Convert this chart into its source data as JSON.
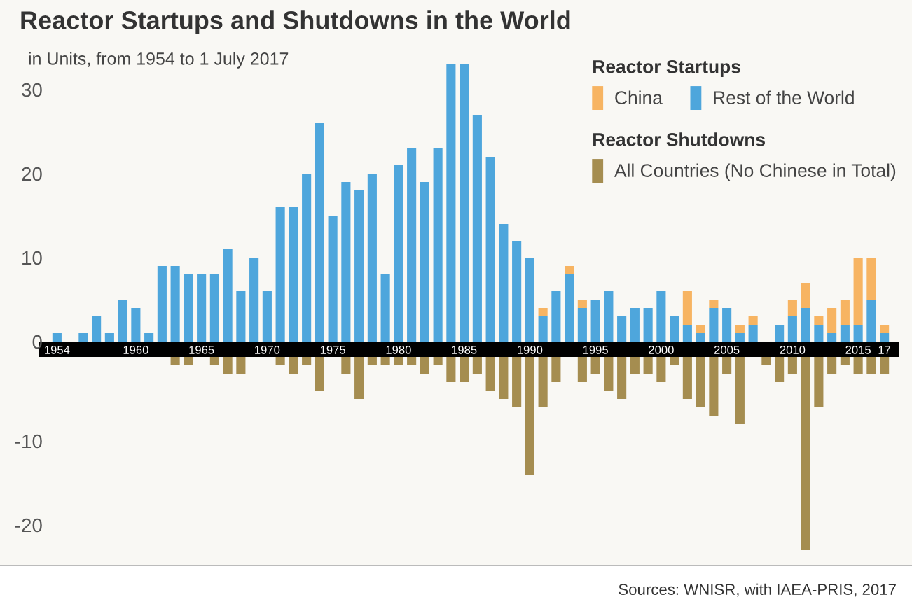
{
  "chart_data": [
    {
      "type": "bar",
      "title": "Reactor Startups and Shutdowns in the World",
      "subtitle": "in Units, from 1954 to 1 July 2017",
      "categories": [
        "1954",
        null,
        null,
        null,
        null,
        null,
        "1960",
        null,
        null,
        null,
        null,
        "1965",
        null,
        null,
        null,
        null,
        "1970",
        null,
        null,
        null,
        null,
        "1975",
        null,
        null,
        null,
        null,
        "1980",
        null,
        null,
        null,
        null,
        "1985",
        null,
        null,
        null,
        null,
        "1990",
        null,
        null,
        null,
        null,
        "1995",
        null,
        null,
        null,
        null,
        "2000",
        null,
        null,
        null,
        null,
        "2005",
        null,
        null,
        null,
        null,
        "2010",
        null,
        null,
        null,
        null,
        "2015",
        null,
        "17"
      ],
      "stacked": true,
      "series": [
        {
          "name": "Rest of the World",
          "color": "#4ea6dc",
          "values": [
            1,
            0,
            1,
            3,
            1,
            5,
            4,
            1,
            9,
            9,
            8,
            8,
            8,
            11,
            6,
            10,
            6,
            16,
            16,
            20,
            26,
            15,
            19,
            18,
            20,
            8,
            21,
            23,
            19,
            23,
            33,
            33,
            27,
            22,
            14,
            12,
            10,
            3,
            6,
            8,
            4,
            5,
            6,
            3,
            4,
            4,
            6,
            3,
            2,
            1,
            4,
            4,
            1,
            2,
            0,
            2,
            3,
            4,
            2,
            1,
            2,
            2,
            5,
            1
          ]
        },
        {
          "name": "China",
          "color": "#f7b462",
          "values": [
            0,
            0,
            0,
            0,
            0,
            0,
            0,
            0,
            0,
            0,
            0,
            0,
            0,
            0,
            0,
            0,
            0,
            0,
            0,
            0,
            0,
            0,
            0,
            0,
            0,
            0,
            0,
            0,
            0,
            0,
            0,
            0,
            0,
            0,
            0,
            0,
            0,
            1,
            0,
            1,
            1,
            0,
            0,
            0,
            0,
            0,
            0,
            0,
            4,
            1,
            1,
            0,
            1,
            1,
            0,
            0,
            2,
            3,
            1,
            3,
            3,
            8,
            5,
            1
          ]
        }
      ],
      "legend_title": "Reactor Startups",
      "legend": "top right",
      "ylim": [
        0,
        33.5
      ],
      "yticks": [
        0,
        10,
        20,
        30
      ]
    },
    {
      "type": "bar",
      "categories": [
        "1954",
        null,
        null,
        null,
        null,
        null,
        "1960",
        null,
        null,
        null,
        null,
        "1965",
        null,
        null,
        null,
        null,
        "1970",
        null,
        null,
        null,
        null,
        "1975",
        null,
        null,
        null,
        null,
        "1980",
        null,
        null,
        null,
        null,
        "1985",
        null,
        null,
        null,
        null,
        "1990",
        null,
        null,
        null,
        null,
        "1995",
        null,
        null,
        null,
        null,
        "2000",
        null,
        null,
        null,
        null,
        "2005",
        null,
        null,
        null,
        null,
        "2010",
        null,
        null,
        null,
        null,
        "2015",
        null,
        "17"
      ],
      "series": [
        {
          "name": "All Countries (No Chinese in Total)",
          "color": "#a58d50",
          "values": [
            0,
            0,
            0,
            0,
            0,
            0,
            0,
            0,
            0,
            -1,
            -1,
            0,
            -1,
            -2,
            -2,
            0,
            0,
            -1,
            -2,
            -1,
            -4,
            0,
            -2,
            -5,
            -1,
            -1,
            -1,
            -1,
            -2,
            -1,
            -3,
            -3,
            -2,
            -4,
            -5,
            -6,
            -14,
            -6,
            -3,
            0,
            -3,
            -2,
            -4,
            -5,
            -2,
            -2,
            -3,
            -1,
            -5,
            -6,
            -7,
            -2,
            -8,
            0,
            -1,
            -3,
            -2,
            -23,
            -6,
            -2,
            -1,
            -2,
            -2,
            -2
          ]
        }
      ],
      "legend_title": "Reactor Shutdowns",
      "legend": "top right",
      "ylim": [
        -23,
        0
      ],
      "yticks": [
        {
          "value": -10,
          "label": "-10"
        },
        {
          "value": -20,
          "label": "-20"
        }
      ],
      "tick_labels": "y",
      "annotations": [
        "Sources: WNISR, with IAEA-PRIS, 2017"
      ]
    }
  ]
}
